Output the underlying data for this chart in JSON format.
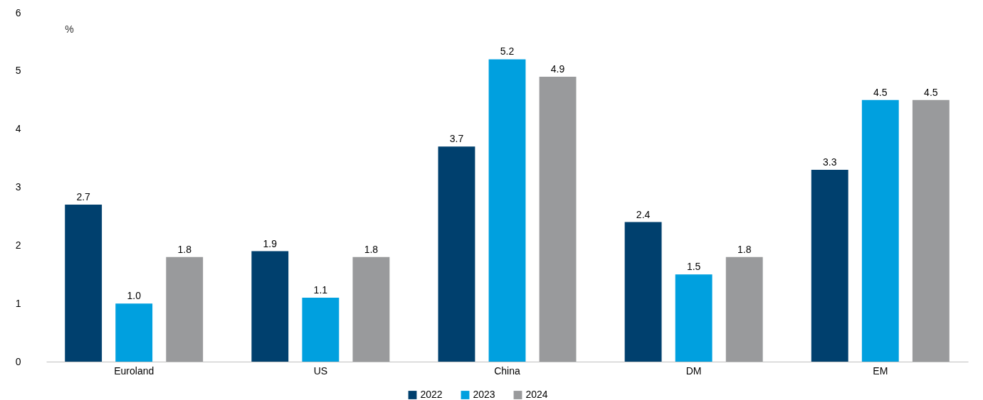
{
  "chart_data": {
    "type": "bar",
    "ylabel": "%",
    "categories": [
      "Euroland",
      "US",
      "China",
      "DM",
      "EM"
    ],
    "series": [
      {
        "name": "2022",
        "color": "#00406e",
        "values": [
          2.7,
          1.9,
          3.7,
          2.4,
          3.3
        ],
        "value_labels": [
          "2.7",
          "1.9",
          "3.7",
          "2.4",
          "3.3"
        ]
      },
      {
        "name": "2023",
        "color": "#00a0df",
        "values": [
          1.0,
          1.1,
          5.2,
          1.5,
          4.5
        ],
        "value_labels": [
          "1.0",
          "1.1",
          "5.2",
          "1.5",
          "4.5"
        ]
      },
      {
        "name": "2024",
        "color": "#999a9c",
        "values": [
          1.8,
          1.8,
          4.9,
          1.8,
          4.5
        ],
        "value_labels": [
          "1.8",
          "1.8",
          "4.9",
          "1.8",
          "4.5"
        ]
      }
    ],
    "ylim": [
      0,
      6
    ],
    "yticks": [
      0,
      1,
      2,
      3,
      4,
      5,
      6
    ],
    "grid": false,
    "legend": "bottom"
  }
}
